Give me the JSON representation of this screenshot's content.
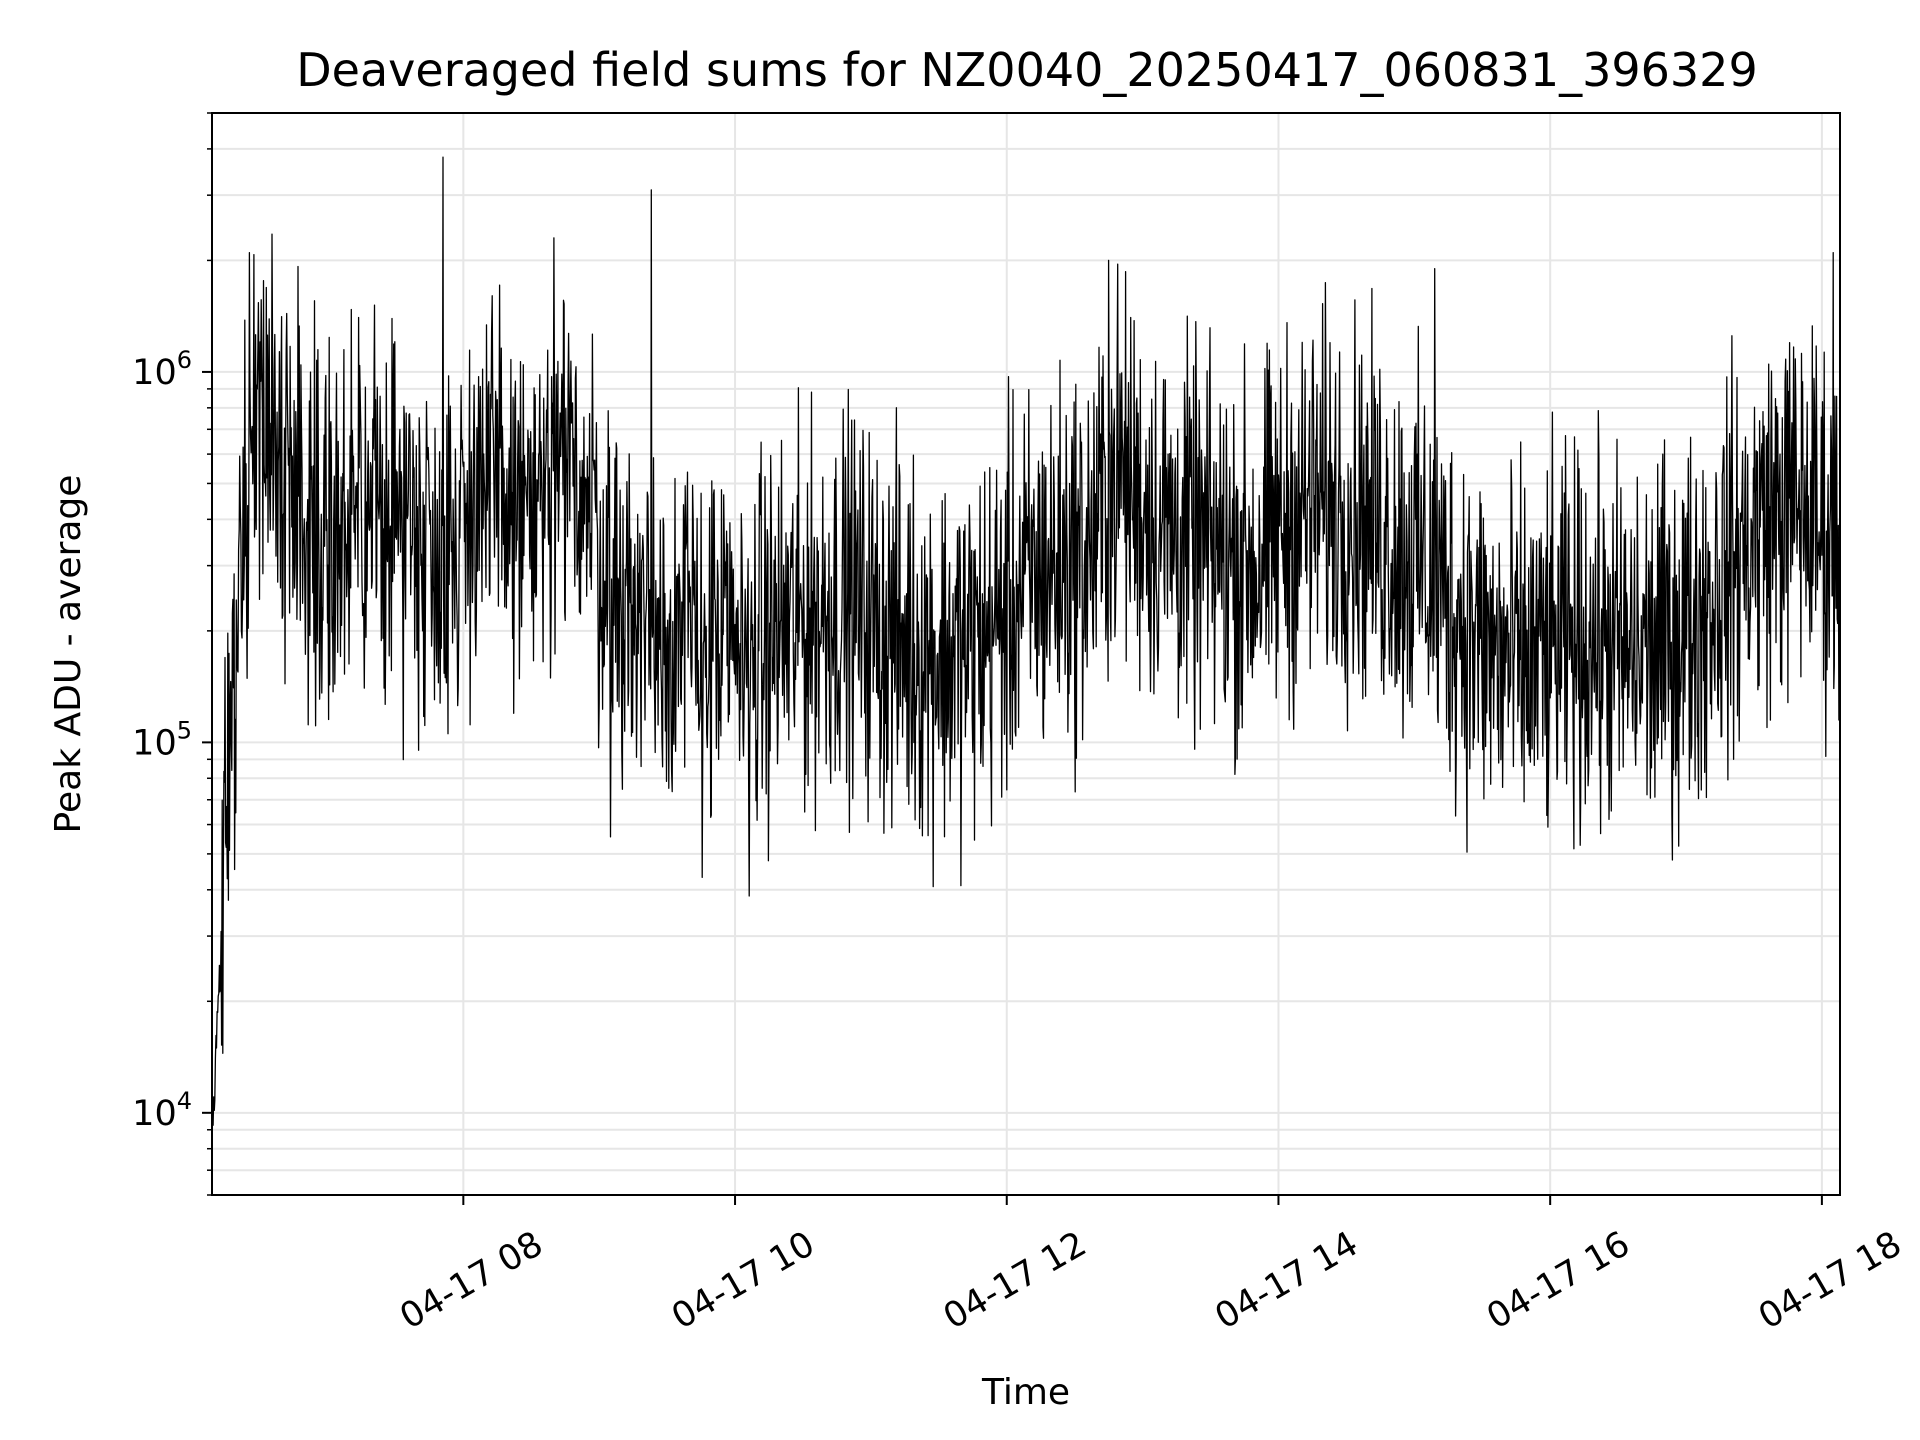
{
  "chart_data": {
    "type": "line",
    "title": "Deaveraged field sums for NZ0040_20250417_060831_396329",
    "xlabel": "Time",
    "ylabel": "Peak ADU - average",
    "x_axis": {
      "kind": "datetime",
      "date": "2025-04-17",
      "range": [
        "2025-04-17 06:09",
        "2025-04-17 18:08"
      ],
      "ticks": [
        {
          "time": "08:00",
          "label": "04-17 08"
        },
        {
          "time": "10:00",
          "label": "04-17 10"
        },
        {
          "time": "12:00",
          "label": "04-17 12"
        },
        {
          "time": "14:00",
          "label": "04-17 14"
        },
        {
          "time": "16:00",
          "label": "04-17 16"
        },
        {
          "time": "18:00",
          "label": "04-17 18"
        }
      ],
      "tick_label_rotation_deg": 30
    },
    "y_axis": {
      "scale": "log",
      "range": [
        6000,
        5000000
      ],
      "ticks": [
        {
          "value": 10000,
          "base": "10",
          "exp": "4"
        },
        {
          "value": 100000,
          "base": "10",
          "exp": "5"
        },
        {
          "value": 1000000,
          "base": "10",
          "exp": "6"
        }
      ]
    },
    "grid": true,
    "legend": "none",
    "series": [
      {
        "color": "#000000",
        "x": [
          "06:09",
          "06:12",
          "06:18",
          "06:24",
          "06:30",
          "06:40",
          "06:55",
          "07:10",
          "07:25",
          "07:40",
          "07:52",
          "08:05",
          "08:20",
          "08:35",
          "08:50",
          "09:05",
          "09:20",
          "09:35",
          "09:50",
          "10:05",
          "10:20",
          "10:35",
          "10:50",
          "11:05",
          "11:20",
          "11:35",
          "11:50",
          "12:05",
          "12:20",
          "12:35",
          "12:50",
          "13:05",
          "13:20",
          "13:35",
          "13:50",
          "14:05",
          "14:20",
          "14:35",
          "14:50",
          "15:05",
          "15:20",
          "15:35",
          "15:50",
          "16:05",
          "16:20",
          "16:35",
          "16:50",
          "17:05",
          "17:20",
          "17:35",
          "17:50",
          "18:05",
          "18:08"
        ],
        "y": [
          8000,
          20000,
          150000,
          500000,
          1000000,
          550000,
          400000,
          350000,
          450000,
          400000,
          300000,
          500000,
          450000,
          400000,
          600000,
          250000,
          220000,
          200000,
          180000,
          170000,
          200000,
          220000,
          250000,
          200000,
          180000,
          170000,
          190000,
          250000,
          300000,
          320000,
          550000,
          400000,
          350000,
          320000,
          300000,
          400000,
          450000,
          420000,
          350000,
          300000,
          220000,
          170000,
          160000,
          180000,
          190000,
          170000,
          180000,
          220000,
          300000,
          400000,
          450000,
          350000,
          300000
        ]
      }
    ],
    "spikes": [
      {
        "x": "07:51",
        "y": 3800000
      },
      {
        "x": "08:40",
        "y": 2300000
      },
      {
        "x": "09:23",
        "y": 3100000
      },
      {
        "x": "12:45",
        "y": 2000000
      },
      {
        "x": "15:09",
        "y": 1900000
      },
      {
        "x": "18:05",
        "y": 2100000
      }
    ]
  }
}
